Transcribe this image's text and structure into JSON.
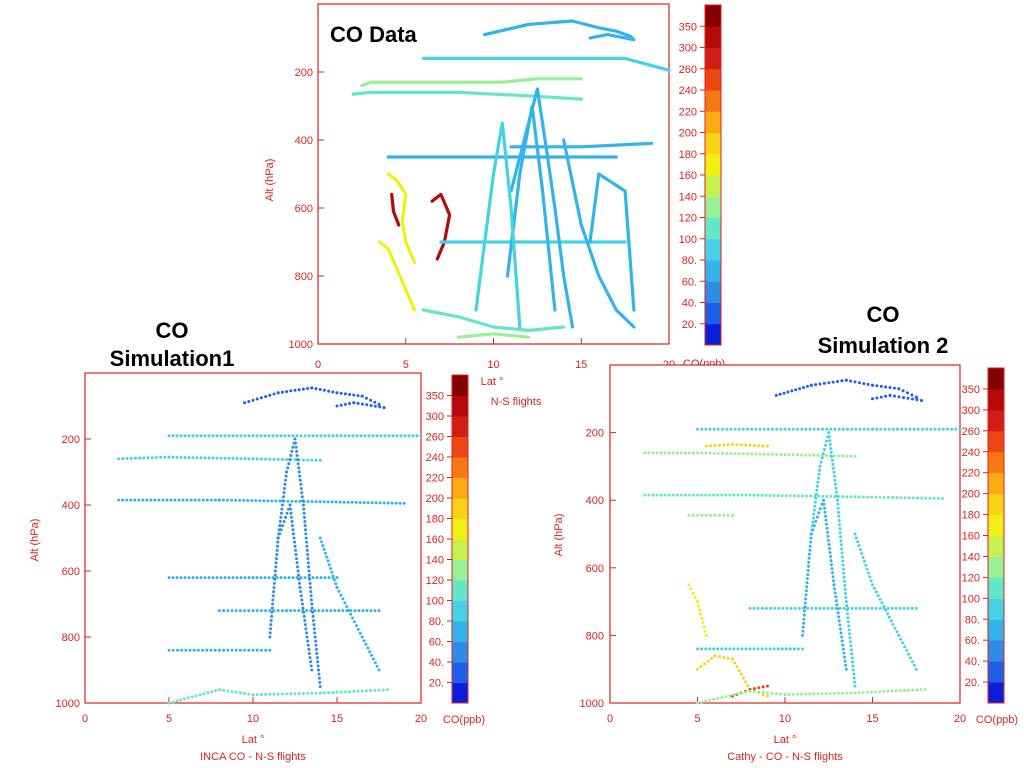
{
  "palette": {
    "axis": "#dd2222",
    "colorbar": [
      "#0a1edc",
      "#1e5fe6",
      "#2d8ce6",
      "#32b4eb",
      "#46d2e6",
      "#64e6c8",
      "#96f096",
      "#c8f050",
      "#f0f014",
      "#fad214",
      "#faaa14",
      "#f57814",
      "#eb4614",
      "#d21e14",
      "#b40a0a",
      "#820000"
    ]
  },
  "colorbar_ticks": [
    "20.",
    "40.",
    "60.",
    "80.",
    "100",
    "120",
    "140",
    "160",
    "180",
    "200",
    "220",
    "240",
    "260",
    "300",
    "350"
  ],
  "chart_data": [
    {
      "type": "scatter",
      "title": "CO Data",
      "xlabel": "Lat °",
      "ylabel": "Alt (hPa)",
      "subtitle": "N-S flights",
      "colorbar_label": "CO(ppb)",
      "xlim": [
        0,
        20
      ],
      "ylim": [
        1000,
        0
      ],
      "x_ticks": [
        "0",
        "5",
        "10",
        "15",
        "20"
      ],
      "y_ticks": [
        "200",
        "400",
        "600",
        "800",
        "1000"
      ],
      "y_axis_reversed": true,
      "tracks": [
        {
          "co": 90,
          "points": [
            [
              9.5,
              90
            ],
            [
              12.0,
              60
            ],
            [
              14.5,
              50
            ],
            [
              16.0,
              70
            ],
            [
              17.0,
              80
            ],
            [
              17.8,
              95
            ],
            [
              18.0,
              105
            ],
            [
              16.5,
              90
            ],
            [
              15.5,
              100
            ]
          ]
        },
        {
          "co": 160,
          "points": [
            [
              2.5,
              240
            ],
            [
              3.0,
              230
            ],
            [
              7.0,
              230
            ],
            [
              10.5,
              230
            ],
            [
              12.5,
              220
            ],
            [
              15.0,
              220
            ]
          ]
        },
        {
          "co": 100,
          "points": [
            [
              6.0,
              160
            ],
            [
              10.0,
              160
            ],
            [
              14.0,
              160
            ],
            [
              17.5,
              160
            ],
            [
              20.0,
              195
            ]
          ]
        },
        {
          "co": 120,
          "points": [
            [
              2.0,
              265
            ],
            [
              3.0,
              260
            ],
            [
              8.0,
              260
            ],
            [
              12.0,
              270
            ],
            [
              15.0,
              280
            ]
          ]
        },
        {
          "co": 90,
          "points": [
            [
              4.0,
              450
            ],
            [
              8.0,
              450
            ],
            [
              13.0,
              450
            ],
            [
              17.0,
              450
            ]
          ]
        },
        {
          "co": 80,
          "points": [
            [
              11.0,
              420
            ],
            [
              15.0,
              420
            ],
            [
              19.0,
              410
            ]
          ]
        },
        {
          "co": 200,
          "points": [
            [
              4.0,
              500
            ],
            [
              4.5,
              520
            ],
            [
              5.0,
              560
            ],
            [
              4.8,
              640
            ],
            [
              5.0,
              700
            ],
            [
              5.5,
              760
            ]
          ]
        },
        {
          "co": 330,
          "points": [
            [
              4.2,
              560
            ],
            [
              4.3,
              610
            ],
            [
              4.6,
              650
            ]
          ]
        },
        {
          "co": 330,
          "points": [
            [
              6.5,
              580
            ],
            [
              7.0,
              560
            ],
            [
              7.5,
              620
            ],
            [
              7.2,
              700
            ],
            [
              6.8,
              750
            ]
          ]
        },
        {
          "co": 200,
          "points": [
            [
              3.5,
              700
            ],
            [
              4.0,
              720
            ],
            [
              4.5,
              780
            ],
            [
              5.0,
              840
            ],
            [
              5.5,
              900
            ]
          ]
        },
        {
          "co": 130,
          "points": [
            [
              6.0,
              900
            ],
            [
              8.0,
              920
            ],
            [
              10.0,
              950
            ],
            [
              12.0,
              960
            ],
            [
              14.0,
              950
            ]
          ]
        },
        {
          "co": 100,
          "points": [
            [
              7.0,
              700
            ],
            [
              10.0,
              700
            ],
            [
              14.0,
              700
            ],
            [
              17.5,
              700
            ]
          ]
        },
        {
          "co": 80,
          "points": [
            [
              11.0,
              550
            ],
            [
              12.0,
              350
            ],
            [
              12.5,
              250
            ],
            [
              13.0,
              420
            ],
            [
              13.5,
              600
            ],
            [
              14.0,
              800
            ],
            [
              14.5,
              950
            ]
          ]
        },
        {
          "co": 70,
          "points": [
            [
              10.8,
              800
            ],
            [
              11.5,
              500
            ],
            [
              12.2,
              300
            ],
            [
              12.8,
              550
            ],
            [
              13.5,
              900
            ]
          ]
        },
        {
          "co": 110,
          "points": [
            [
              9.0,
              900
            ],
            [
              9.5,
              700
            ],
            [
              10.0,
              500
            ],
            [
              10.5,
              350
            ],
            [
              11.0,
              600
            ],
            [
              11.5,
              950
            ]
          ]
        },
        {
          "co": 90,
          "points": [
            [
              14.0,
              400
            ],
            [
              15.0,
              650
            ],
            [
              16.0,
              800
            ],
            [
              17.0,
              900
            ],
            [
              18.0,
              950
            ]
          ]
        },
        {
          "co": 80,
          "points": [
            [
              15.5,
              700
            ],
            [
              16.0,
              500
            ],
            [
              17.5,
              550
            ],
            [
              18.0,
              900
            ]
          ]
        },
        {
          "co": 140,
          "points": [
            [
              8.0,
              980
            ],
            [
              10.0,
              970
            ],
            [
              12.0,
              980
            ]
          ]
        }
      ]
    },
    {
      "type": "scatter",
      "title": "CO Simulation1",
      "title_lines": [
        "CO",
        "Simulation1"
      ],
      "xlabel": "Lat °",
      "ylabel": "Alt (hPa)",
      "subtitle": "INCA CO   -   N-S flights",
      "colorbar_label": "CO(ppb)",
      "xlim": [
        0,
        20
      ],
      "ylim": [
        1000,
        0
      ],
      "x_ticks": [
        "0",
        "5",
        "10",
        "15",
        "20"
      ],
      "y_ticks": [
        "200",
        "400",
        "600",
        "800",
        "1000"
      ],
      "y_axis_reversed": true,
      "tracks": [
        {
          "co": 40,
          "points": [
            [
              9.5,
              90
            ],
            [
              11.5,
              60
            ],
            [
              13.5,
              45
            ],
            [
              15.0,
              60
            ],
            [
              16.5,
              70
            ],
            [
              17.5,
              95
            ],
            [
              17.8,
              105
            ],
            [
              16.0,
              90
            ],
            [
              15.0,
              100
            ]
          ]
        },
        {
          "co": 100,
          "points": [
            [
              5.0,
              190
            ],
            [
              10.0,
              190
            ],
            [
              15.0,
              190
            ],
            [
              20.0,
              190
            ]
          ]
        },
        {
          "co": 100,
          "points": [
            [
              2.0,
              260
            ],
            [
              5.0,
              255
            ],
            [
              10.0,
              260
            ],
            [
              14.0,
              265
            ]
          ]
        },
        {
          "co": 90,
          "points": [
            [
              2.0,
              385
            ],
            [
              8.0,
              385
            ],
            [
              14.0,
              390
            ],
            [
              19.0,
              395
            ]
          ]
        },
        {
          "co": 80,
          "points": [
            [
              5.0,
              620
            ],
            [
              10.0,
              620
            ],
            [
              15.0,
              620
            ]
          ]
        },
        {
          "co": 70,
          "points": [
            [
              8.0,
              720
            ],
            [
              12.0,
              720
            ],
            [
              17.5,
              720
            ]
          ]
        },
        {
          "co": 90,
          "points": [
            [
              5.0,
              840
            ],
            [
              8.0,
              840
            ],
            [
              11.0,
              840
            ]
          ]
        },
        {
          "co": 120,
          "points": [
            [
              5.0,
              1000
            ],
            [
              8.0,
              960
            ],
            [
              10.0,
              975
            ],
            [
              14.0,
              970
            ],
            [
              18.0,
              960
            ]
          ]
        },
        {
          "co": 60,
          "points": [
            [
              11.5,
              500
            ],
            [
              12.0,
              300
            ],
            [
              12.5,
              200
            ],
            [
              13.0,
              400
            ],
            [
              13.5,
              700
            ],
            [
              14.0,
              950
            ]
          ]
        },
        {
          "co": 50,
          "points": [
            [
              11.0,
              800
            ],
            [
              11.5,
              500
            ],
            [
              12.2,
              400
            ],
            [
              12.8,
              650
            ],
            [
              13.5,
              900
            ]
          ]
        },
        {
          "co": 80,
          "points": [
            [
              14.0,
              500
            ],
            [
              15.0,
              650
            ],
            [
              16.5,
              800
            ],
            [
              17.5,
              900
            ]
          ]
        }
      ]
    },
    {
      "type": "scatter",
      "title": "CO Simulation 2",
      "title_lines": [
        "CO",
        "Simulation 2"
      ],
      "xlabel": "Lat °",
      "ylabel": "Alt (hPa)",
      "subtitle": "Cathy - CO   -   N-S flights",
      "colorbar_label": "CO(ppb)",
      "xlim": [
        0,
        20
      ],
      "ylim": [
        1000,
        0
      ],
      "x_ticks": [
        "0",
        "5",
        "10",
        "15",
        "20"
      ],
      "y_ticks": [
        "200",
        "400",
        "600",
        "800",
        "1000"
      ],
      "y_axis_reversed": true,
      "tracks": [
        {
          "co": 40,
          "points": [
            [
              9.5,
              90
            ],
            [
              11.5,
              60
            ],
            [
              13.5,
              45
            ],
            [
              15.0,
              60
            ],
            [
              16.5,
              70
            ],
            [
              17.5,
              95
            ],
            [
              17.8,
              105
            ],
            [
              16.0,
              90
            ],
            [
              15.0,
              100
            ]
          ]
        },
        {
          "co": 100,
          "points": [
            [
              5.0,
              190
            ],
            [
              10.0,
              190
            ],
            [
              15.0,
              190
            ],
            [
              20.0,
              190
            ]
          ]
        },
        {
          "co": 230,
          "points": [
            [
              5.5,
              240
            ],
            [
              7.0,
              235
            ],
            [
              9.0,
              240
            ]
          ]
        },
        {
          "co": 140,
          "points": [
            [
              2.0,
              260
            ],
            [
              5.0,
              260
            ],
            [
              10.0,
              265
            ],
            [
              14.0,
              270
            ]
          ]
        },
        {
          "co": 120,
          "points": [
            [
              2.0,
              385
            ],
            [
              8.0,
              385
            ],
            [
              14.0,
              390
            ],
            [
              19.0,
              395
            ]
          ]
        },
        {
          "co": 160,
          "points": [
            [
              4.5,
              445
            ],
            [
              6.0,
              445
            ],
            [
              7.0,
              445
            ]
          ]
        },
        {
          "co": 100,
          "points": [
            [
              8.0,
              720
            ],
            [
              12.0,
              720
            ],
            [
              17.5,
              720
            ]
          ]
        },
        {
          "co": 110,
          "points": [
            [
              5.0,
              840
            ],
            [
              8.0,
              840
            ],
            [
              11.0,
              840
            ]
          ]
        },
        {
          "co": 230,
          "points": [
            [
              5.0,
              900
            ],
            [
              6.0,
              860
            ],
            [
              7.0,
              870
            ],
            [
              8.0,
              960
            ],
            [
              9.0,
              980
            ]
          ]
        },
        {
          "co": 280,
          "points": [
            [
              7.0,
              980
            ],
            [
              8.0,
              960
            ],
            [
              9.0,
              950
            ]
          ]
        },
        {
          "co": 160,
          "points": [
            [
              5.0,
              1000
            ],
            [
              8.0,
              965
            ],
            [
              10.0,
              975
            ],
            [
              14.0,
              970
            ],
            [
              18.0,
              960
            ]
          ]
        },
        {
          "co": 100,
          "points": [
            [
              11.5,
              500
            ],
            [
              12.0,
              300
            ],
            [
              12.5,
              200
            ],
            [
              13.0,
              400
            ],
            [
              13.5,
              700
            ],
            [
              14.0,
              950
            ]
          ]
        },
        {
          "co": 90,
          "points": [
            [
              11.0,
              800
            ],
            [
              11.5,
              500
            ],
            [
              12.2,
              400
            ],
            [
              12.8,
              650
            ],
            [
              13.5,
              900
            ]
          ]
        },
        {
          "co": 110,
          "points": [
            [
              14.0,
              500
            ],
            [
              15.0,
              650
            ],
            [
              16.5,
              800
            ],
            [
              17.5,
              900
            ]
          ]
        },
        {
          "co": 200,
          "points": [
            [
              4.5,
              650
            ],
            [
              5.0,
              700
            ],
            [
              5.5,
              800
            ]
          ]
        }
      ]
    }
  ]
}
